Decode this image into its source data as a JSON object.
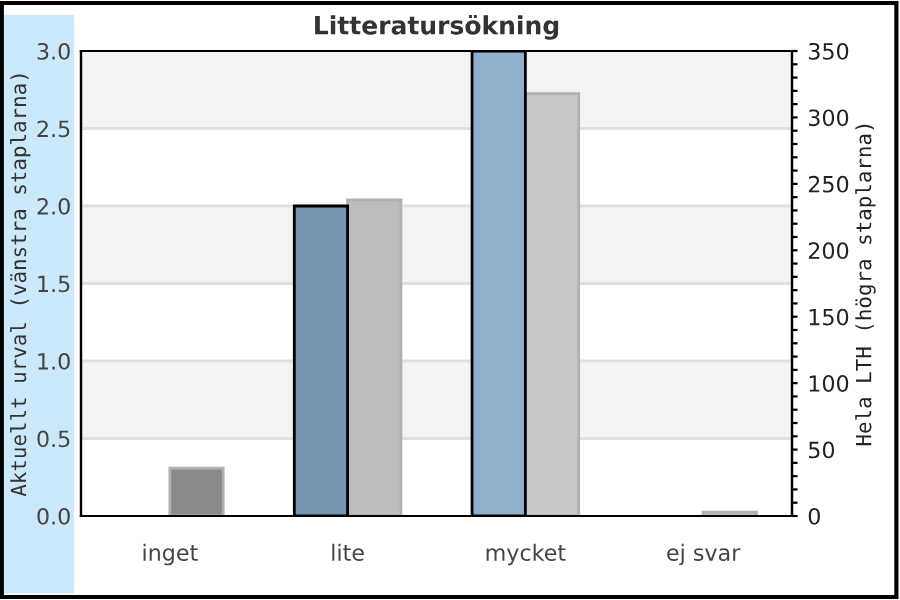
{
  "chart_data": {
    "type": "bar",
    "title": "Litteratursökning",
    "categories": [
      "inget",
      "lite",
      "mycket",
      "ej svar"
    ],
    "series": [
      {
        "colors": [
          "#7393b0",
          "#7393b0",
          "#8fb0cc",
          "#8fb0cc"
        ],
        "values": [
          0,
          2.0,
          3.0,
          0
        ]
      },
      {
        "axis": "y2",
        "colors": [
          "#8a8a8a",
          "#bdbdbd",
          "#c8c8c8",
          "#c8c8c8"
        ],
        "values": [
          36,
          238,
          318,
          3
        ]
      }
    ],
    "ylabel": "Aktuellt urval (vänstra staplarna)",
    "y2label": "Hela LTH (högra staplarna)",
    "ylim": [
      0,
      3.0
    ],
    "yticks": [
      {
        "value": 0,
        "label": "0.0"
      },
      {
        "value": 0.5,
        "label": "0.5"
      },
      {
        "value": 1.0,
        "label": "1.0"
      },
      {
        "value": 1.5,
        "label": "1.5"
      },
      {
        "value": 2.0,
        "label": "2.0"
      },
      {
        "value": 2.5,
        "label": "2.5"
      },
      {
        "value": 3.0,
        "label": "3.0"
      }
    ],
    "y2lim": [
      0,
      350
    ],
    "y2ticks": [
      0,
      {
        "value": 10,
        "label": null
      },
      {
        "value": 20,
        "label": null
      },
      {
        "value": 30,
        "label": null
      },
      {
        "value": 40,
        "label": null
      },
      50,
      {
        "value": 60,
        "label": null
      },
      {
        "value": 70,
        "label": null
      },
      {
        "value": 80,
        "label": null
      },
      {
        "value": 90,
        "label": null
      },
      100,
      {
        "value": 110,
        "label": null
      },
      {
        "value": 120,
        "label": null
      },
      {
        "value": 130,
        "label": null
      },
      {
        "value": 140,
        "label": null
      },
      150,
      {
        "value": 160,
        "label": null
      },
      {
        "value": 170,
        "label": null
      },
      {
        "value": 180,
        "label": null
      },
      {
        "value": 190,
        "label": null
      },
      200,
      {
        "value": 210,
        "label": null
      },
      {
        "value": 220,
        "label": null
      },
      {
        "value": 230,
        "label": null
      },
      {
        "value": 240,
        "label": null
      },
      250,
      {
        "value": 260,
        "label": null
      },
      {
        "value": 270,
        "label": null
      },
      {
        "value": 280,
        "label": null
      },
      {
        "value": 290,
        "label": null
      },
      300,
      {
        "value": 310,
        "label": null
      },
      {
        "value": 320,
        "label": null
      },
      {
        "value": 330,
        "label": null
      },
      {
        "value": 340,
        "label": null
      },
      350
    ],
    "grid": "y"
  }
}
